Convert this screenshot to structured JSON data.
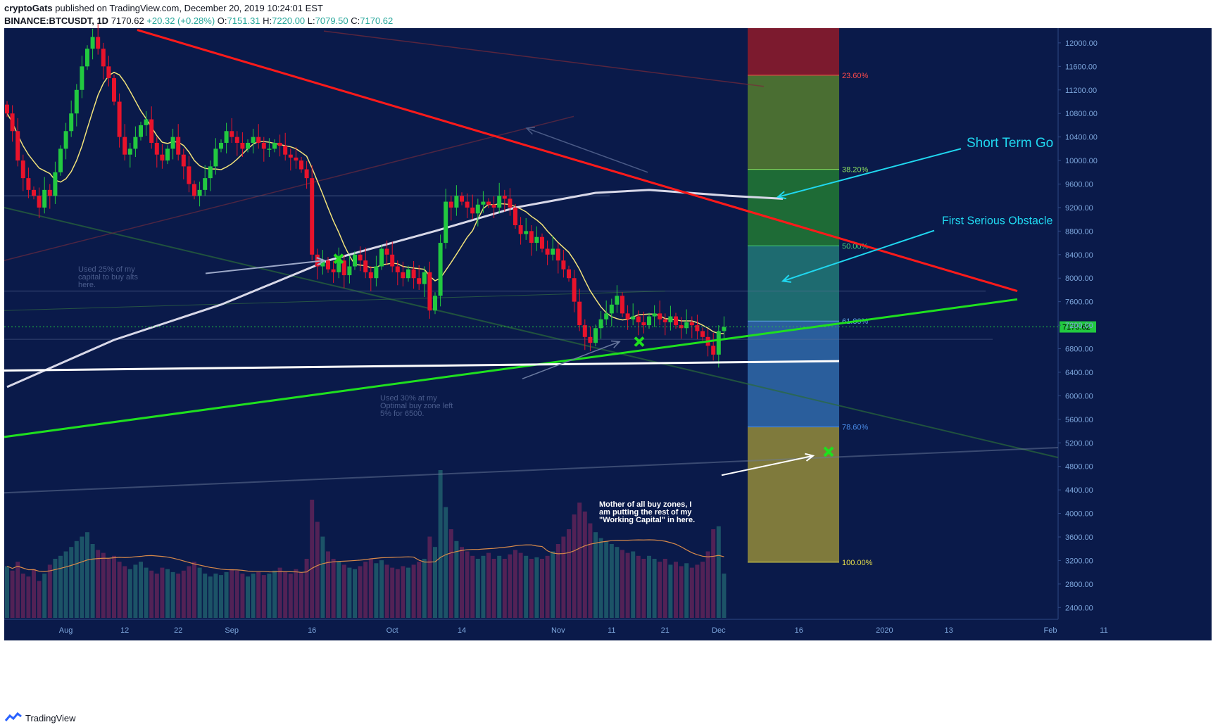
{
  "header": {
    "author": "cryptoGats",
    "published": "published on TradingView.com, December 20, 2019 10:24:01 EST",
    "symbol": "BINANCE:BTCUSDT, 1D",
    "last": "7170.62",
    "change": "+20.32 (+0.28%)",
    "o_label": "O:",
    "o": "7151.31",
    "h_label": "H:",
    "h": "7220.00",
    "l_label": "L:",
    "l": "7079.50",
    "c_label": "C:",
    "c": "7170.62"
  },
  "footer": {
    "brand": "TradingView"
  },
  "colors": {
    "background": "#0a1a4a",
    "up": "#22c940",
    "down": "#e8132b",
    "ma_fast": "#f2e37a",
    "ma_slow": "#d8d8e8",
    "resistance": "#ff1a1a",
    "support": "#1fe01f",
    "horizontal": "#ffffff",
    "annotation_cyan": "#20d8f0",
    "axis_text": "#7da6dc"
  },
  "chart_data": {
    "type": "candlestick",
    "timeframe": "1D",
    "y_range": [
      2200,
      12250
    ],
    "y_ticks": [
      12000,
      11600,
      11200,
      10800,
      10400,
      10000,
      9600,
      9200,
      8800,
      8400,
      8000,
      7600,
      7200,
      6800,
      6400,
      6000,
      5600,
      5200,
      4800,
      4400,
      4000,
      3600,
      3200,
      2800,
      2400
    ],
    "y_tick_labels": [
      "12000.00",
      "11600.00",
      "11200.00",
      "10800.00",
      "10400.00",
      "10000.00",
      "9600.00",
      "9200.00",
      "8800.00",
      "8400.00",
      "8000.00",
      "7600.00",
      "7200.00",
      "6800.00",
      "6400.00",
      "6000.00",
      "5600.00",
      "5200.00",
      "4800.00",
      "4400.00",
      "4000.00",
      "3600.00",
      "3200.00",
      "2800.00",
      "2400.00"
    ],
    "x_axis": [
      {
        "label": "Aug",
        "day": 11
      },
      {
        "label": "12",
        "day": 22
      },
      {
        "label": "22",
        "day": 32
      },
      {
        "label": "Sep",
        "day": 42
      },
      {
        "label": "16",
        "day": 57
      },
      {
        "label": "Oct",
        "day": 72
      },
      {
        "label": "14",
        "day": 85
      },
      {
        "label": "Nov",
        "day": 103
      },
      {
        "label": "11",
        "day": 113
      },
      {
        "label": "21",
        "day": 123
      },
      {
        "label": "Dec",
        "day": 133
      },
      {
        "label": "16",
        "day": 148
      },
      {
        "label": "2020",
        "day": 164
      },
      {
        "label": "13",
        "day": 176
      },
      {
        "label": "Feb",
        "day": 195
      },
      {
        "label": "11",
        "day": 205
      }
    ],
    "current_price_label": "7170.62",
    "current_price": 7170.62,
    "closes": [
      10800,
      10500,
      10000,
      9700,
      9500,
      9400,
      9200,
      9500,
      9400,
      9800,
      10200,
      10500,
      10800,
      11200,
      11600,
      11900,
      12100,
      11900,
      11600,
      11400,
      11000,
      10400,
      10100,
      10200,
      10400,
      10600,
      10700,
      10300,
      10100,
      10000,
      10200,
      10400,
      10100,
      9900,
      9600,
      9400,
      9500,
      9700,
      9900,
      10200,
      10300,
      10500,
      10400,
      10300,
      10200,
      10300,
      10400,
      10300,
      10200,
      10200,
      10300,
      10250,
      10100,
      10050,
      10000,
      9850,
      9700,
      8400,
      8200,
      8300,
      8150,
      8100,
      8300,
      8050,
      8200,
      8400,
      8300,
      8100,
      8000,
      8200,
      8500,
      8400,
      8200,
      8100,
      8000,
      8150,
      8000,
      7900,
      8100,
      7450,
      7700,
      8600,
      9300,
      9200,
      9400,
      9300,
      9200,
      9100,
      9250,
      9300,
      9250,
      9200,
      9400,
      9350,
      9200,
      8900,
      8750,
      8800,
      8600,
      8700,
      8500,
      8400,
      8500,
      8300,
      8150,
      8000,
      7600,
      7200,
      7000,
      6900,
      7150,
      7300,
      7400,
      7550,
      7700,
      7400,
      7300,
      7350,
      7250,
      7200,
      7350,
      7400,
      7300,
      7250,
      7350,
      7200,
      7150,
      7250,
      7200,
      7100,
      7000,
      6850,
      6700,
      7100,
      7170
    ],
    "volumes": [
      0.35,
      0.32,
      0.38,
      0.3,
      0.28,
      0.33,
      0.25,
      0.3,
      0.36,
      0.4,
      0.42,
      0.45,
      0.48,
      0.52,
      0.55,
      0.58,
      0.5,
      0.46,
      0.44,
      0.4,
      0.42,
      0.38,
      0.35,
      0.33,
      0.36,
      0.38,
      0.34,
      0.32,
      0.3,
      0.34,
      0.33,
      0.31,
      0.3,
      0.32,
      0.35,
      0.38,
      0.34,
      0.3,
      0.28,
      0.3,
      0.29,
      0.31,
      0.33,
      0.32,
      0.3,
      0.28,
      0.3,
      0.31,
      0.29,
      0.3,
      0.32,
      0.34,
      0.31,
      0.3,
      0.33,
      0.31,
      0.4,
      0.8,
      0.65,
      0.55,
      0.45,
      0.4,
      0.38,
      0.36,
      0.34,
      0.33,
      0.35,
      0.38,
      0.4,
      0.37,
      0.39,
      0.36,
      0.34,
      0.33,
      0.35,
      0.34,
      0.36,
      0.38,
      0.4,
      0.55,
      0.48,
      1.0,
      0.75,
      0.6,
      0.52,
      0.48,
      0.45,
      0.42,
      0.4,
      0.42,
      0.44,
      0.4,
      0.42,
      0.4,
      0.43,
      0.46,
      0.44,
      0.42,
      0.4,
      0.41,
      0.4,
      0.42,
      0.45,
      0.5,
      0.55,
      0.6,
      0.7,
      0.78,
      0.72,
      0.64,
      0.58,
      0.54,
      0.52,
      0.5,
      0.48,
      0.46,
      0.44,
      0.45,
      0.42,
      0.4,
      0.42,
      0.4,
      0.38,
      0.4,
      0.36,
      0.38,
      0.35,
      0.37,
      0.34,
      0.36,
      0.38,
      0.45,
      0.6,
      0.62,
      0.3
    ]
  },
  "fib_levels": [
    {
      "label": "23.60%",
      "price": 11450,
      "color": "#ff4a4a"
    },
    {
      "label": "38.20%",
      "price": 9850,
      "color": "#8ce060"
    },
    {
      "label": "50.00%",
      "price": 8550,
      "color": "#46d07a"
    },
    {
      "label": "61.80%",
      "price": 7270,
      "color": "#5aa4e0"
    },
    {
      "label": "78.60%",
      "price": 5470,
      "color": "#4a8ce8"
    },
    {
      "label": "100.00%",
      "price": 3170,
      "color": "#e8e04a"
    }
  ],
  "annotations": {
    "short_term": "Short Term Go",
    "first_obstacle": "First Serious Obstacle",
    "alts_note": [
      "Used 25% of my",
      "capital to buy alts",
      "here."
    ],
    "optimal_note": [
      "Used 30% at my",
      "Optimal buy zone left",
      "5% for 6500."
    ],
    "mother_note": [
      "Mother of all buy zones, I",
      "am putting the rest of my",
      "\"Working Capital\" in here."
    ]
  }
}
